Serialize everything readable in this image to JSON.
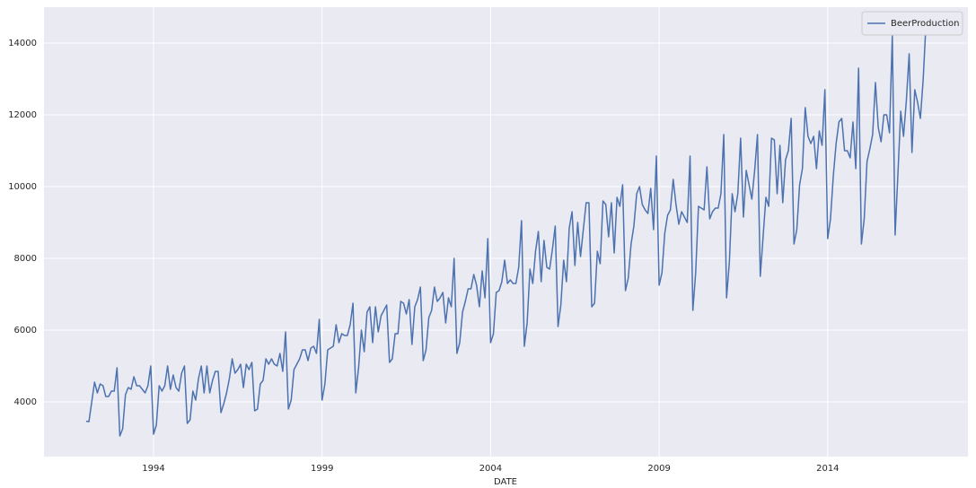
{
  "chart_data": {
    "type": "line",
    "xlabel": "DATE",
    "legend": "upper right",
    "grid": true,
    "xlim": [
      1990.75,
      2018.16
    ],
    "xticks": [
      1994,
      1999,
      2004,
      2009,
      2014
    ],
    "ylim": [
      2475,
      15000
    ],
    "yticks": [
      4000,
      6000,
      8000,
      10000,
      12000,
      14000
    ],
    "x": [
      "1992-01",
      "1992-02",
      "1992-03",
      "1992-04",
      "1992-05",
      "1992-06",
      "1992-07",
      "1992-08",
      "1992-09",
      "1992-10",
      "1992-11",
      "1992-12",
      "1993-01",
      "1993-02",
      "1993-03",
      "1993-04",
      "1993-05",
      "1993-06",
      "1993-07",
      "1993-08",
      "1993-09",
      "1993-10",
      "1993-11",
      "1993-12",
      "1994-01",
      "1994-02",
      "1994-03",
      "1994-04",
      "1994-05",
      "1994-06",
      "1994-07",
      "1994-08",
      "1994-09",
      "1994-10",
      "1994-11",
      "1994-12",
      "1995-01",
      "1995-02",
      "1995-03",
      "1995-04",
      "1995-05",
      "1995-06",
      "1995-07",
      "1995-08",
      "1995-09",
      "1995-10",
      "1995-11",
      "1995-12",
      "1996-01",
      "1996-02",
      "1996-03",
      "1996-04",
      "1996-05",
      "1996-06",
      "1996-07",
      "1996-08",
      "1996-09",
      "1996-10",
      "1996-11",
      "1996-12",
      "1997-01",
      "1997-02",
      "1997-03",
      "1997-04",
      "1997-05",
      "1997-06",
      "1997-07",
      "1997-08",
      "1997-09",
      "1997-10",
      "1997-11",
      "1997-12",
      "1998-01",
      "1998-02",
      "1998-03",
      "1998-04",
      "1998-05",
      "1998-06",
      "1998-07",
      "1998-08",
      "1998-09",
      "1998-10",
      "1998-11",
      "1998-12",
      "1999-01",
      "1999-02",
      "1999-03",
      "1999-04",
      "1999-05",
      "1999-06",
      "1999-07",
      "1999-08",
      "1999-09",
      "1999-10",
      "1999-11",
      "1999-12",
      "2000-01",
      "2000-02",
      "2000-03",
      "2000-04",
      "2000-05",
      "2000-06",
      "2000-07",
      "2000-08",
      "2000-09",
      "2000-10",
      "2000-11",
      "2000-12",
      "2001-01",
      "2001-02",
      "2001-03",
      "2001-04",
      "2001-05",
      "2001-06",
      "2001-07",
      "2001-08",
      "2001-09",
      "2001-10",
      "2001-11",
      "2001-12",
      "2002-01",
      "2002-02",
      "2002-03",
      "2002-04",
      "2002-05",
      "2002-06",
      "2002-07",
      "2002-08",
      "2002-09",
      "2002-10",
      "2002-11",
      "2002-12",
      "2003-01",
      "2003-02",
      "2003-03",
      "2003-04",
      "2003-05",
      "2003-06",
      "2003-07",
      "2003-08",
      "2003-09",
      "2003-10",
      "2003-11",
      "2003-12",
      "2004-01",
      "2004-02",
      "2004-03",
      "2004-04",
      "2004-05",
      "2004-06",
      "2004-07",
      "2004-08",
      "2004-09",
      "2004-10",
      "2004-11",
      "2004-12",
      "2005-01",
      "2005-02",
      "2005-03",
      "2005-04",
      "2005-05",
      "2005-06",
      "2005-07",
      "2005-08",
      "2005-09",
      "2005-10",
      "2005-11",
      "2005-12",
      "2006-01",
      "2006-02",
      "2006-03",
      "2006-04",
      "2006-05",
      "2006-06",
      "2006-07",
      "2006-08",
      "2006-09",
      "2006-10",
      "2006-11",
      "2006-12",
      "2007-01",
      "2007-02",
      "2007-03",
      "2007-04",
      "2007-05",
      "2007-06",
      "2007-07",
      "2007-08",
      "2007-09",
      "2007-10",
      "2007-11",
      "2007-12",
      "2008-01",
      "2008-02",
      "2008-03",
      "2008-04",
      "2008-05",
      "2008-06",
      "2008-07",
      "2008-08",
      "2008-09",
      "2008-10",
      "2008-11",
      "2008-12",
      "2009-01",
      "2009-02",
      "2009-03",
      "2009-04",
      "2009-05",
      "2009-06",
      "2009-07",
      "2009-08",
      "2009-09",
      "2009-10",
      "2009-11",
      "2009-12",
      "2010-01",
      "2010-02",
      "2010-03",
      "2010-04",
      "2010-05",
      "2010-06",
      "2010-07",
      "2010-08",
      "2010-09",
      "2010-10",
      "2010-11",
      "2010-12",
      "2011-01",
      "2011-02",
      "2011-03",
      "2011-04",
      "2011-05",
      "2011-06",
      "2011-07",
      "2011-08",
      "2011-09",
      "2011-10",
      "2011-11",
      "2011-12",
      "2012-01",
      "2012-02",
      "2012-03",
      "2012-04",
      "2012-05",
      "2012-06",
      "2012-07",
      "2012-08",
      "2012-09",
      "2012-10",
      "2012-11",
      "2012-12",
      "2013-01",
      "2013-02",
      "2013-03",
      "2013-04",
      "2013-05",
      "2013-06",
      "2013-07",
      "2013-08",
      "2013-09",
      "2013-10",
      "2013-11",
      "2013-12",
      "2014-01",
      "2014-02",
      "2014-03",
      "2014-04",
      "2014-05",
      "2014-06",
      "2014-07",
      "2014-08",
      "2014-09",
      "2014-10",
      "2014-11",
      "2014-12",
      "2015-01",
      "2015-02",
      "2015-03",
      "2015-04",
      "2015-05",
      "2015-06",
      "2015-07",
      "2015-08",
      "2015-09",
      "2015-10",
      "2015-11",
      "2015-12",
      "2016-01",
      "2016-02",
      "2016-03",
      "2016-04",
      "2016-05",
      "2016-06",
      "2016-07",
      "2016-08",
      "2016-09",
      "2016-10",
      "2016-11",
      "2016-12"
    ],
    "series": [
      {
        "name": "BeerProduction",
        "color": "#4c72b0",
        "values": [
          3460,
          3450,
          4000,
          4550,
          4250,
          4500,
          4450,
          4150,
          4150,
          4300,
          4300,
          4950,
          3050,
          3250,
          4200,
          4400,
          4350,
          4700,
          4450,
          4450,
          4350,
          4250,
          4450,
          5000,
          3100,
          3350,
          4450,
          4300,
          4450,
          5000,
          4350,
          4750,
          4400,
          4300,
          4800,
          5000,
          3400,
          3500,
          4300,
          4050,
          4650,
          5000,
          4250,
          5000,
          4250,
          4600,
          4850,
          4850,
          3700,
          3950,
          4250,
          4650,
          5200,
          4800,
          4900,
          5050,
          4400,
          5050,
          4900,
          5100,
          3750,
          3800,
          4500,
          4600,
          5200,
          5050,
          5200,
          5050,
          5000,
          5350,
          4850,
          5950,
          3800,
          4050,
          4900,
          5050,
          5200,
          5450,
          5450,
          5150,
          5500,
          5550,
          5350,
          6300,
          4050,
          4500,
          5450,
          5500,
          5550,
          6150,
          5650,
          5900,
          5850,
          5850,
          6150,
          6750,
          4250,
          4950,
          6000,
          5400,
          6500,
          6650,
          5650,
          6650,
          5950,
          6400,
          6550,
          6700,
          5100,
          5200,
          5900,
          5900,
          6800,
          6750,
          6450,
          6850,
          5600,
          6650,
          6850,
          7200,
          5150,
          5450,
          6350,
          6550,
          7200,
          6800,
          6900,
          7050,
          6200,
          6900,
          6650,
          8000,
          5350,
          5650,
          6500,
          6800,
          7150,
          7150,
          7550,
          7250,
          6650,
          7650,
          6900,
          8550,
          5650,
          5900,
          7050,
          7100,
          7350,
          7950,
          7300,
          7400,
          7300,
          7300,
          7750,
          9050,
          5550,
          6200,
          7700,
          7300,
          8200,
          8750,
          7350,
          8500,
          7750,
          7700,
          8250,
          8900,
          6100,
          6700,
          7950,
          7350,
          8850,
          9300,
          7800,
          9000,
          8050,
          8800,
          9550,
          9550,
          6650,
          6750,
          8200,
          7850,
          9600,
          9500,
          8600,
          9550,
          8150,
          9700,
          9450,
          10050,
          7100,
          7450,
          8400,
          8900,
          9800,
          10000,
          9500,
          9350,
          9250,
          9950,
          8800,
          10850,
          7250,
          7600,
          8700,
          9200,
          9350,
          10200,
          9500,
          8950,
          9300,
          9150,
          9000,
          10850,
          6550,
          7600,
          9450,
          9400,
          9350,
          10550,
          9100,
          9300,
          9400,
          9400,
          9800,
          11450,
          6900,
          7900,
          9800,
          9300,
          9800,
          11350,
          9150,
          10450,
          10050,
          9650,
          10450,
          11450,
          7500,
          8600,
          9700,
          9450,
          11350,
          11300,
          9800,
          11150,
          9550,
          10750,
          11000,
          11900,
          8400,
          8800,
          10050,
          10500,
          12200,
          11400,
          11200,
          11400,
          10500,
          11550,
          11150,
          12700,
          8550,
          9100,
          10300,
          11200,
          11800,
          11900,
          11000,
          11000,
          10800,
          11800,
          10500,
          13300,
          8400,
          9100,
          10700,
          11050,
          11450,
          12900,
          11650,
          11250,
          12000,
          12000,
          11500,
          14200,
          8650,
          10350,
          12100,
          11400,
          12400,
          13700,
          10950,
          12700,
          12350,
          11900,
          13000,
          14550
        ]
      }
    ]
  }
}
